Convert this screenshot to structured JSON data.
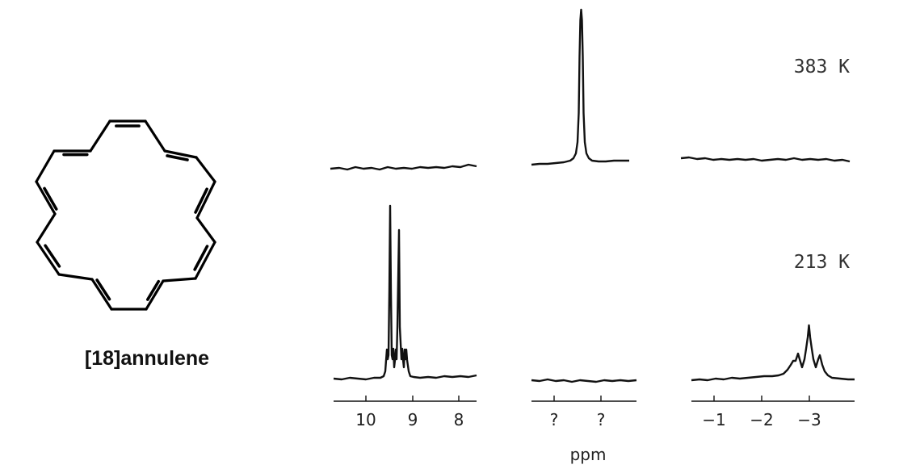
{
  "compound": {
    "name": "[18]annulene",
    "ring_size": 18
  },
  "spectra": {
    "temperatures": [
      {
        "label": "383 K"
      },
      {
        "label": "213 K"
      }
    ],
    "x_axis": {
      "title": "ppm",
      "reversed": true,
      "segments": [
        {
          "ticks": [
            {
              "value": 10,
              "label": "10"
            },
            {
              "value": 9,
              "label": "9"
            },
            {
              "value": 8,
              "label": "8"
            }
          ],
          "range": [
            10.6,
            7.6
          ]
        },
        {
          "ticks": [
            {
              "value": "a",
              "label": "?"
            },
            {
              "value": "b",
              "label": "?"
            }
          ],
          "range": null
        },
        {
          "ticks": [
            {
              "value": -1,
              "label": "−1"
            },
            {
              "value": -2,
              "label": "−2"
            },
            {
              "value": -3,
              "label": "−3"
            }
          ],
          "range": [
            -0.6,
            -3.9
          ]
        }
      ]
    },
    "peaks": {
      "383 K": [
        {
          "region": "middle",
          "shape": "single sharp peak"
        }
      ],
      "213 K": [
        {
          "region": "left",
          "ppm": 9.5,
          "shape": "tall line"
        },
        {
          "region": "left",
          "ppm": 9.3,
          "shape": "tall line"
        },
        {
          "region": "right",
          "ppm": -3.0,
          "shape": "multiplet"
        }
      ]
    }
  }
}
